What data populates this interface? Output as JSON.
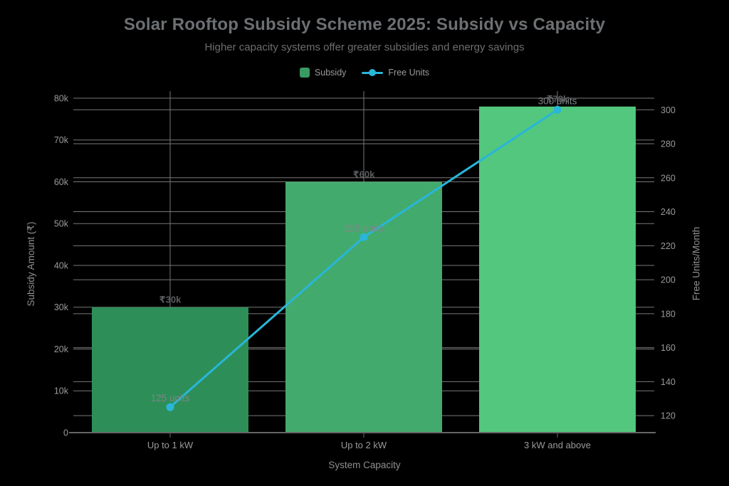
{
  "chart": {
    "title": "Solar Rooftop Subsidy Scheme 2025: Subsidy vs Capacity",
    "subtitle": "Higher capacity systems offer greater subsidies and energy savings",
    "legend": [
      {
        "label": "Subsidy",
        "icon": "bar-swatch"
      },
      {
        "label": "Free Units",
        "icon": "line-swatch"
      }
    ],
    "xlabel": "System Capacity",
    "ylabel_left": "Subsidy Amount (₹)",
    "ylabel_right": "Free Units/Month"
  },
  "chart_data": {
    "type": "combo",
    "categories": [
      "Up to 1 kW",
      "Up to 2 kW",
      "3 kW and above"
    ],
    "series": [
      {
        "name": "Subsidy",
        "type": "bar",
        "axis": "left",
        "values": [
          30000,
          60000,
          78000
        ],
        "data_labels": [
          "₹30k",
          "₹60k",
          "₹78k"
        ]
      },
      {
        "name": "Free Units",
        "type": "line",
        "axis": "right",
        "values": [
          125,
          225,
          300
        ],
        "data_labels": [
          "125 units",
          "225 units",
          "300 units"
        ]
      }
    ],
    "left_axis": {
      "title": "Subsidy Amount (₹)",
      "tick_labels": [
        "0",
        "10k",
        "20k",
        "30k",
        "40k",
        "50k",
        "60k",
        "70k",
        "80k"
      ],
      "tick_values": [
        0,
        10000,
        20000,
        30000,
        40000,
        50000,
        60000,
        70000,
        80000
      ],
      "range": [
        0,
        81700
      ]
    },
    "right_axis": {
      "title": "Free Units/Month",
      "tick_labels": [
        "120",
        "140",
        "160",
        "180",
        "200",
        "220",
        "240",
        "260",
        "280",
        "300"
      ],
      "tick_values": [
        120,
        140,
        160,
        180,
        200,
        220,
        240,
        260,
        280,
        300
      ],
      "range": [
        110,
        311
      ]
    },
    "grid": true,
    "legend_position": "top-center"
  },
  "colors": {
    "background": "#000000",
    "bars": [
      "#2e8e58",
      "#43aa6d",
      "#52c77d"
    ],
    "line": "#29b6d9",
    "legend_bar_swatch": "#3a9a64",
    "grid": "#787878",
    "axis_line": "#666666",
    "tick_label": "#9a9a9a",
    "axis_title": "#8f8f8f",
    "title": "#6d7073",
    "subtitle": "#6e6e6e",
    "bar_label": "#595c5e",
    "line_label": "#7f8689",
    "category_label": "#9a9a9a"
  }
}
